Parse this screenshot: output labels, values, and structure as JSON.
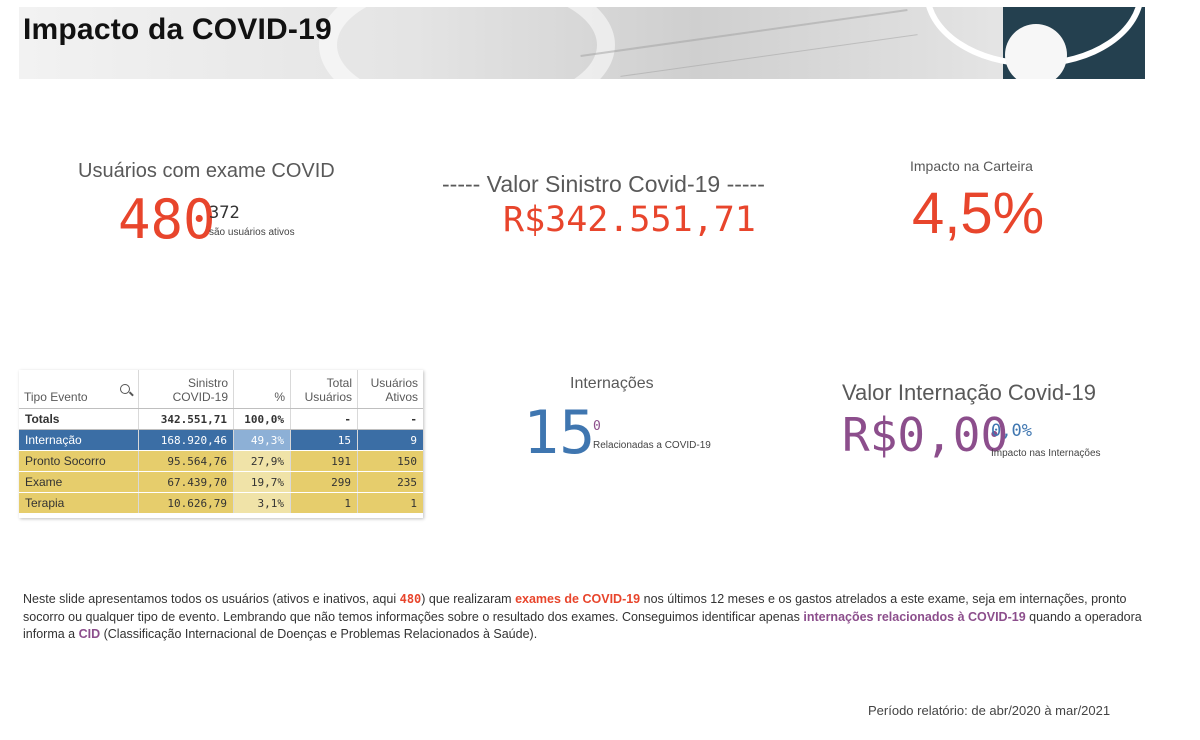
{
  "header": {
    "title": "Impacto da COVID-19"
  },
  "kpis": {
    "usuarios": {
      "label": "Usuários com exame COVID",
      "value": "480",
      "sub_value": "372",
      "sub_label": "são usuários ativos"
    },
    "sinistro": {
      "label": "----- Valor Sinistro Covid-19 -----",
      "value": "R$342.551,71"
    },
    "impacto": {
      "label": "Impacto na Carteira",
      "value": "4,5%"
    },
    "internacoes": {
      "label": "Internações",
      "value": "15",
      "sub_value": "0",
      "sub_label": "Relacionadas a COVID-19"
    },
    "valor_internacao": {
      "label": "Valor Internação Covid-19",
      "value": "R$0,00",
      "sub_value": "0,0%",
      "sub_label": "Impacto nas Internações"
    }
  },
  "table": {
    "headers": [
      "Tipo Evento",
      "Sinistro COVID-19",
      "%",
      "Total Usuários",
      "Usuários Ativos"
    ],
    "totals": [
      "Totals",
      "342.551,71",
      "100,0%",
      "-",
      "-"
    ],
    "rows": [
      [
        "Internação",
        "168.920,46",
        "49,3%",
        "15",
        "9"
      ],
      [
        "Pronto Socorro",
        "95.564,76",
        "27,9%",
        "191",
        "150"
      ],
      [
        "Exame",
        "67.439,70",
        "19,7%",
        "299",
        "235"
      ],
      [
        "Terapia",
        "10.626,79",
        "3,1%",
        "1",
        "1"
      ]
    ]
  },
  "paragraph": {
    "t1": "Neste slide apresentamos todos os usuários (ativos e inativos, aqui ",
    "n480": "480",
    "t2": ") que realizaram ",
    "exames": "exames de COVID-19",
    "t3": " nos últimos 12 meses e os gastos atrelados a este exame, seja em internações, pronto socorro ou qualquer tipo de evento. Lembrando que não temos informações sobre o resultado dos exames. Conseguimos identificar apenas ",
    "internacoes": "internações relacionados à COVID-19",
    "t4": " quando a operadora informa a ",
    "cid": "CID",
    "t5": " (Classificação Internacional de Doenças e Problemas Relacionados à Saúde)."
  },
  "footer": {
    "period": "Período relatório: de abr/2020 à mar/2021"
  },
  "colors": {
    "accent_red": "#e8452c",
    "accent_blue": "#3f76b0",
    "accent_purple": "#8c4e8c",
    "table_yellow": "#e6cd6c",
    "table_selected": "#3b6ea5"
  }
}
